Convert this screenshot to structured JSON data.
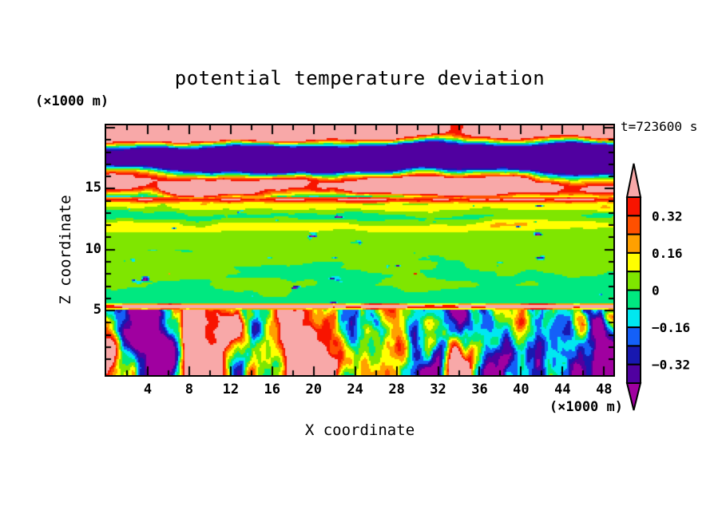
{
  "title": "potential temperature deviation",
  "annotations": {
    "time": "t=723600 s"
  },
  "x_axis": {
    "label": "X coordinate",
    "unit": "(×1000 m)",
    "ticks": [
      4,
      8,
      12,
      16,
      20,
      24,
      28,
      32,
      36,
      40,
      44,
      48
    ],
    "minor_tick_step": 2,
    "range": [
      0,
      48.9
    ]
  },
  "y_axis": {
    "label": "Z coordinate",
    "unit": "(×1000 m)",
    "ticks": [
      5,
      10,
      15
    ],
    "minor_tick_step": 1,
    "range": [
      -0.3,
      20.2
    ]
  },
  "colorbar": {
    "tick_labels": [
      "0.32",
      "0.16",
      "0",
      "−0.16",
      "−0.32"
    ],
    "arrow_high": {
      "meaning": "> 0.40",
      "color": "#F8A8A8"
    },
    "arrow_low": {
      "meaning": "< −0.40",
      "color": "#A000A0"
    },
    "segments": [
      {
        "value_range": "0.32 to 0.40",
        "color": "#F81400"
      },
      {
        "value_range": "0.24 to 0.32",
        "color": "#FF5000"
      },
      {
        "value_range": "0.16 to 0.24",
        "color": "#FFA000"
      },
      {
        "value_range": "0.08 to 0.16",
        "color": "#FFFF00"
      },
      {
        "value_range": "0.00 to 0.08",
        "color": "#7FE600"
      },
      {
        "value_range": "−0.08 to 0.00",
        "color": "#00E880"
      },
      {
        "value_range": "−0.16 to −0.08",
        "color": "#00E8F0"
      },
      {
        "value_range": "−0.24 to −0.16",
        "color": "#1460F8"
      },
      {
        "value_range": "−0.32 to −0.24",
        "color": "#1818B0"
      },
      {
        "value_range": "−0.40 to −0.32",
        "color": "#5000A0"
      }
    ]
  },
  "chart_data": {
    "type": "heatmap",
    "title": "potential temperature deviation",
    "xlabel": "X coordinate",
    "ylabel": "Z coordinate",
    "x_unit": "×1000 m",
    "y_unit": "×1000 m",
    "xlim": [
      0,
      48.9
    ],
    "ylim": [
      -0.3,
      20.2
    ],
    "x_ticks": [
      4,
      8,
      12,
      16,
      20,
      24,
      28,
      32,
      36,
      40,
      44,
      48
    ],
    "y_ticks": [
      5,
      10,
      15
    ],
    "time_annotation": "t=723600 s",
    "contour_interval": 0.08,
    "levels": [
      -0.4,
      -0.32,
      -0.24,
      -0.16,
      -0.08,
      0,
      0.08,
      0.16,
      0.24,
      0.32,
      0.4
    ],
    "colors_low_to_high": [
      "#A000A0",
      "#5000A0",
      "#1818B0",
      "#1460F8",
      "#00E8F0",
      "#00E880",
      "#7FE600",
      "#FFFF00",
      "#FFA000",
      "#FF5000",
      "#F81400",
      "#F8A8A8"
    ],
    "grid": false,
    "legend_position": "right-colorbar",
    "layers": [
      {
        "id": "upper_cloud_deck",
        "z_range": [
          14.35,
          20.2
        ],
        "description": "interlocking strong-positive (>0.4, pink) and strong-negative (<-0.4, dark violet) lobes with thin rainbow-fringed contour boundaries; pink band along top edge, violet band through middle, pink lens at mid-height"
      },
      {
        "id": "capping_stripe",
        "z_range": [
          13.85,
          14.35
        ],
        "description": "thin intense positive stripe (red/orange) with yellow edges and occasional pink blobs, spanning full width near z=14"
      },
      {
        "id": "layered_streaks",
        "z_range": [
          11.4,
          13.85
        ],
        "description": "horizontal yellow / yellow-green streaks (0 to 0.16) with scattered dark-violet and cyan specks"
      },
      {
        "id": "quiet_interior",
        "z_range": [
          5.6,
          11.4
        ],
        "description": "weak deviation near 0; yellow-green above grading to spring green below, sparse navy/violet and cyan specks, rare tiny red dots"
      },
      {
        "id": "surface_inversion_line",
        "z_range": [
          5.1,
          5.6
        ],
        "description": "very thin intense positive line (red, locally pink) across entire width near z=5.2"
      },
      {
        "id": "convective_boundary_layer",
        "z_range": [
          -0.3,
          5.1
        ],
        "description": "turbulent plumes: vertically elongated strong-positive cells (yellow/orange/red with pink cores and descending pink fingers) and strong-negative cells (blue/navy/violet) on a green/cyan background"
      }
    ]
  }
}
